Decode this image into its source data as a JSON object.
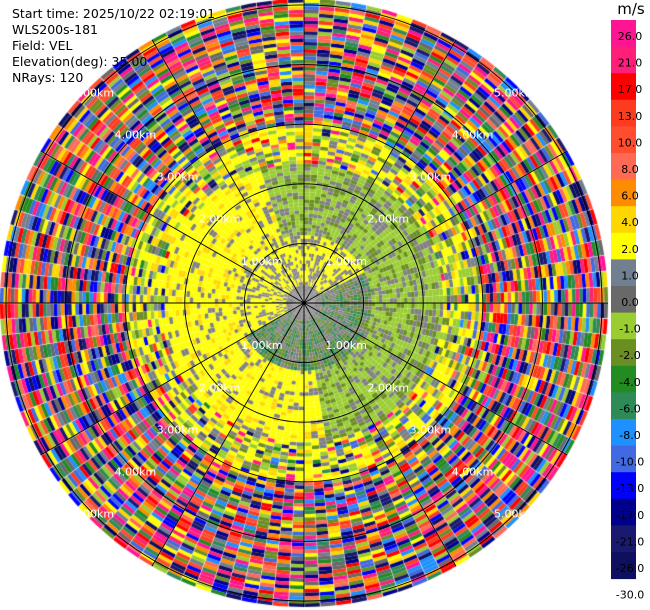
{
  "header": {
    "start_time": "Start time: 2025/10/22 02:19:01",
    "instrument": "WLS200s-181",
    "field": "Field: VEL",
    "elevation": "Elevation(deg): 35.00",
    "nrays": "NRays: 120"
  },
  "colorbar": {
    "units": "m/s",
    "ticks": [
      "26.0",
      "21.0",
      "17.0",
      "13.0",
      "10.0",
      "8.0",
      "6.0",
      "4.0",
      "2.0",
      "1.0",
      "0.0",
      "-1.0",
      "-2.0",
      "-4.0",
      "-6.0",
      "-8.0",
      "-10.0",
      "-13.0",
      "-17.0",
      "-21.0",
      "-26.0",
      "-30.0"
    ],
    "colors": [
      "#ff1493",
      "#ff1f7a",
      "#ff0000",
      "#ff3b1f",
      "#ff4d2e",
      "#ff6a55",
      "#ff8c00",
      "#ffd700",
      "#ffff00",
      "#708090",
      "#696969",
      "#9acd32",
      "#6b8e23",
      "#228b22",
      "#2e8b57",
      "#1e90ff",
      "#4169e1",
      "#0000ff",
      "#00008b",
      "#191970",
      "#0f0f60"
    ]
  },
  "chart_data": {
    "type": "ppi",
    "field": "VEL",
    "elevation_deg": 35.0,
    "nrays": 120,
    "range_rings_km": [
      1.0,
      2.0,
      3.0,
      4.0,
      5.0
    ],
    "range_labels": [
      "1.00km",
      "2.00km",
      "3.00km",
      "4.00km",
      "5.00km"
    ],
    "max_range_km": 5.1,
    "spoke_spacing_deg": 30,
    "grid": true,
    "colors": {
      "ring": "#000000",
      "label": "#ffffff"
    }
  }
}
